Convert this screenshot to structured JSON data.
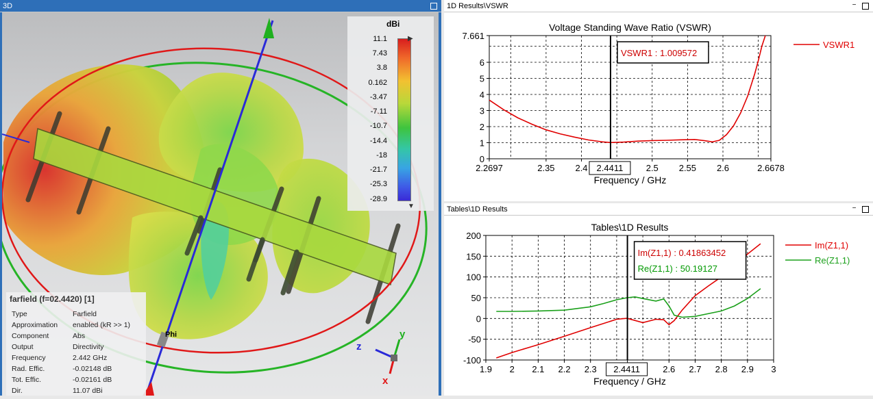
{
  "panels": {
    "view3d_title": "3D",
    "vswr_title": "1D Results\\VSWR",
    "tables_title": "Tables\\1D Results"
  },
  "view3d": {
    "colorbar": {
      "unit": "dBi",
      "ticks": [
        "11.1",
        "7.43",
        "3.8",
        "0.162",
        "-3.47",
        "-7.11",
        "-10.7",
        "-14.4",
        "-18",
        "-21.7",
        "-25.3",
        "-28.9"
      ]
    },
    "axes": {
      "x": "x",
      "y": "y",
      "z": "z",
      "phi": "Phi"
    },
    "info": {
      "title": "farfield (f=02.4420) [1]",
      "rows": [
        {
          "key": "Type",
          "value": "Farfield"
        },
        {
          "key": "Approximation",
          "value": "enabled (kR >> 1)"
        },
        {
          "key": "Component",
          "value": "Abs"
        },
        {
          "key": "Output",
          "value": "Directivity"
        },
        {
          "key": "Frequency",
          "value": "2.442 GHz"
        },
        {
          "key": "Rad. Effic.",
          "value": "-0.02148 dB"
        },
        {
          "key": "Tot. Effic.",
          "value": "-0.02161 dB"
        },
        {
          "key": "Dir.",
          "value": "11.07 dBi"
        }
      ]
    }
  },
  "chart_data": [
    {
      "type": "line",
      "title": "Voltage Standing Wave Ratio (VSWR)",
      "xlabel": "Frequency / GHz",
      "ylabel": "",
      "xlim": [
        2.2697,
        2.6678
      ],
      "ylim": [
        0,
        7.661
      ],
      "xticks": [
        "2.2697",
        "2.35",
        "2.4",
        "2.5",
        "2.55",
        "2.6",
        "2.6678"
      ],
      "xtick_values": [
        2.2697,
        2.35,
        2.4,
        2.5,
        2.55,
        2.6,
        2.6678
      ],
      "xgrid": [
        2.3,
        2.35,
        2.4,
        2.45,
        2.5,
        2.55,
        2.6,
        2.65
      ],
      "yticks": [
        "0",
        "1",
        "2",
        "3",
        "4",
        "5",
        "6",
        "7.661"
      ],
      "ytick_values": [
        0,
        1,
        2,
        3,
        4,
        5,
        6,
        7.661
      ],
      "ygrid": [
        1,
        2,
        3,
        4,
        5,
        6,
        7
      ],
      "grid": true,
      "marker": {
        "x": 2.4411,
        "x_label": "2.4411",
        "label": "VSWR1 : 1.009572",
        "color": "#cc0000"
      },
      "series": [
        {
          "name": "VSWR1",
          "color": "#e00000",
          "x": [
            2.2697,
            2.29,
            2.31,
            2.33,
            2.35,
            2.37,
            2.39,
            2.41,
            2.43,
            2.4411,
            2.46,
            2.48,
            2.5,
            2.52,
            2.54,
            2.56,
            2.575,
            2.585,
            2.595,
            2.605,
            2.615,
            2.625,
            2.635,
            2.645,
            2.65,
            2.655,
            2.66
          ],
          "values": [
            3.65,
            3.05,
            2.55,
            2.15,
            1.8,
            1.55,
            1.35,
            1.17,
            1.05,
            1.01,
            1.04,
            1.1,
            1.13,
            1.15,
            1.18,
            1.2,
            1.12,
            1.05,
            1.15,
            1.5,
            2.05,
            2.85,
            3.9,
            5.3,
            6.1,
            7.0,
            7.661
          ]
        }
      ]
    },
    {
      "type": "line",
      "title": "Tables\\1D Results",
      "xlabel": "Frequency / GHz",
      "ylabel": "",
      "xlim": [
        1.9,
        3.0
      ],
      "ylim": [
        -100,
        200
      ],
      "xticks": [
        "1.9",
        "2",
        "2.1",
        "2.2",
        "2.3",
        "2.4411",
        "2.6",
        "2.7",
        "2.8",
        "2.9",
        "3"
      ],
      "xtick_values": [
        1.9,
        2.0,
        2.1,
        2.2,
        2.3,
        2.4411,
        2.6,
        2.7,
        2.8,
        2.9,
        3.0
      ],
      "xgrid": [
        2.0,
        2.1,
        2.2,
        2.3,
        2.4,
        2.5,
        2.6,
        2.7,
        2.8,
        2.9
      ],
      "yticks": [
        "-100",
        "-50",
        "0",
        "50",
        "100",
        "150",
        "200"
      ],
      "ytick_values": [
        -100,
        -50,
        0,
        50,
        100,
        150,
        200
      ],
      "ygrid": [
        -50,
        0,
        50,
        100,
        150
      ],
      "grid": true,
      "marker": {
        "x": 2.4411,
        "x_label": "2.4411",
        "labels": [
          "Im(Z1,1) : 0.41863452",
          "Re(Z1,1) : 50.19127"
        ],
        "colors": [
          "#cc0000",
          "#009900"
        ]
      },
      "series": [
        {
          "name": "Im(Z1,1)",
          "color": "#e00000",
          "x": [
            1.94,
            2.0,
            2.1,
            2.2,
            2.3,
            2.4,
            2.44,
            2.5,
            2.55,
            2.58,
            2.6,
            2.62,
            2.65,
            2.7,
            2.75,
            2.8,
            2.85,
            2.9,
            2.95
          ],
          "values": [
            -95,
            -82,
            -63,
            -43,
            -22,
            -2,
            0.4,
            -10,
            -2,
            -3,
            -15,
            -5,
            20,
            55,
            78,
            100,
            125,
            155,
            180
          ]
        },
        {
          "name": "Re(Z1,1)",
          "color": "#1aa01a",
          "x": [
            1.94,
            2.0,
            2.1,
            2.2,
            2.3,
            2.35,
            2.4,
            2.44,
            2.47,
            2.5,
            2.55,
            2.58,
            2.6,
            2.62,
            2.65,
            2.7,
            2.8,
            2.85,
            2.9,
            2.95
          ],
          "values": [
            17,
            17,
            18,
            20,
            28,
            36,
            45,
            50,
            52,
            48,
            42,
            47,
            30,
            8,
            3,
            5,
            18,
            30,
            48,
            72
          ]
        }
      ]
    }
  ]
}
